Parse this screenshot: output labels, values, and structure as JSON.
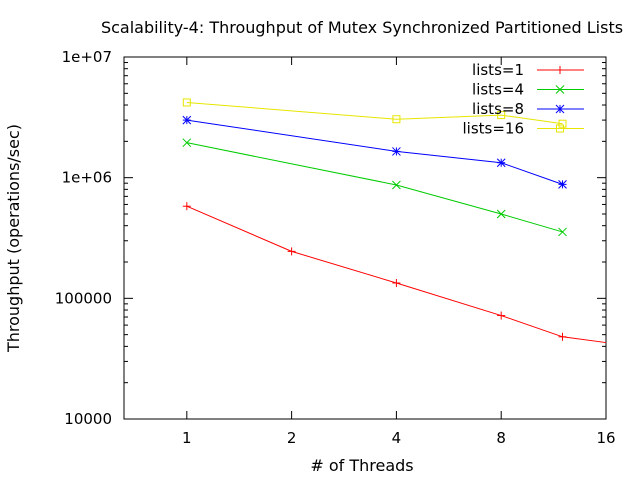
{
  "chart_data": {
    "type": "line",
    "title": "Scalability-4: Throughput of Mutex Synchronized Partitioned Lists",
    "xlabel": "# of Threads",
    "ylabel": "Throughput (operations/sec)",
    "x_scale": "log2",
    "y_scale": "log10",
    "xlim": [
      0.66,
      16
    ],
    "ylim": [
      10000,
      10000000
    ],
    "x_ticks": [
      {
        "value": 1,
        "label": "1"
      },
      {
        "value": 2,
        "label": "2"
      },
      {
        "value": 4,
        "label": "4"
      },
      {
        "value": 8,
        "label": "8"
      },
      {
        "value": 16,
        "label": "16"
      }
    ],
    "y_ticks": [
      {
        "value": 10000,
        "label": "10000"
      },
      {
        "value": 100000,
        "label": "100000"
      },
      {
        "value": 1000000,
        "label": "1e+06"
      },
      {
        "value": 10000000,
        "label": "1e+07"
      }
    ],
    "legend_position": "top-right",
    "grid": false,
    "series": [
      {
        "name": "lists=1",
        "color": "#ff0000",
        "marker": "plus",
        "points": [
          [
            1,
            580000
          ],
          [
            2,
            245000
          ],
          [
            4,
            134000
          ],
          [
            8,
            72000
          ],
          [
            12,
            48000
          ],
          [
            16,
            43000
          ]
        ]
      },
      {
        "name": "lists=4",
        "color": "#00cc00",
        "marker": "cross",
        "points": [
          [
            1,
            1950000
          ],
          [
            4,
            870000
          ],
          [
            8,
            500000
          ],
          [
            12,
            355000
          ]
        ]
      },
      {
        "name": "lists=8",
        "color": "#0000ff",
        "marker": "star",
        "points": [
          [
            1,
            3000000
          ],
          [
            4,
            1650000
          ],
          [
            8,
            1330000
          ],
          [
            12,
            880000
          ]
        ]
      },
      {
        "name": "lists=16",
        "color": "#e6e600",
        "marker": "square",
        "points": [
          [
            1,
            4200000
          ],
          [
            4,
            3050000
          ],
          [
            8,
            3300000
          ],
          [
            12,
            2800000
          ]
        ]
      }
    ]
  }
}
